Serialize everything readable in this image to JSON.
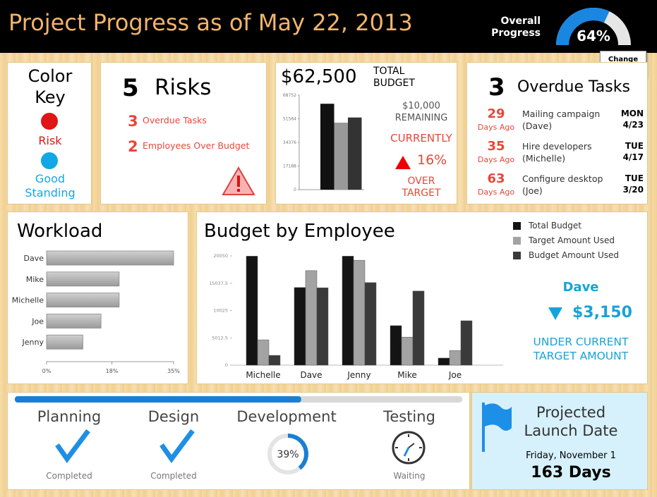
{
  "header": {
    "title": "Project Progress as of May 22, 2013",
    "overall_label": "Overall Progress",
    "gauge": {
      "value": 64,
      "label": "64%"
    },
    "change_data": "Change Data"
  },
  "color_key": {
    "title": "Color Key",
    "items": [
      {
        "label": "Risk",
        "color": "#e01515"
      },
      {
        "label": "Good Standing",
        "color": "#12a7e6"
      }
    ]
  },
  "risks": {
    "count": 5,
    "title": "Risks",
    "items": [
      {
        "count": 3,
        "label": "Overdue Tasks"
      },
      {
        "count": 2,
        "label": "Employees Over Budget"
      }
    ]
  },
  "budget": {
    "amount": "$62,500",
    "label": "TOTAL BUDGET",
    "remaining": "$10,000 REMAINING",
    "currently": "CURRENTLY",
    "percent": "16%",
    "over": "OVER TARGET"
  },
  "overdue": {
    "count": 3,
    "title": "Overdue Tasks",
    "tasks": [
      {
        "days": 29,
        "days_label": "Days Ago",
        "task": "Mailing campaign (Dave)",
        "day": "MON",
        "date": "4/23"
      },
      {
        "days": 35,
        "days_label": "Days Ago",
        "task": "Hire developers (Michelle)",
        "day": "TUE",
        "date": "4/17"
      },
      {
        "days": 63,
        "days_label": "Days Ago",
        "task": "Configure desktop (Joe)",
        "day": "TUE",
        "date": "3/20"
      }
    ]
  },
  "callout": {
    "name": "Dave",
    "amount": "$3,150",
    "text": "UNDER CURRENT TARGET AMOUNT"
  },
  "phases": [
    {
      "name": "Planning",
      "status": "Completed"
    },
    {
      "name": "Design",
      "status": "Completed"
    },
    {
      "name": "Development",
      "progress": {
        "value": 39,
        "label": "39%"
      }
    },
    {
      "name": "Testing",
      "status": "Waiting"
    }
  ],
  "launch": {
    "title": "Projected Launch Date",
    "date": "Friday, November 1",
    "days": "163 Days"
  },
  "chart_data": [
    {
      "type": "bar",
      "values": [
        62500,
        48750,
        52500
      ],
      "colors": [
        "#111111",
        "#999999",
        "#333333"
      ],
      "ylim": [
        0,
        68752
      ],
      "yticks": [
        0,
        17188,
        34376,
        51564,
        68752
      ]
    },
    {
      "type": "hbar",
      "title": "Workload",
      "categories": [
        "Dave",
        "Mike",
        "Michelle",
        "Joe",
        "Jenny"
      ],
      "values": [
        35,
        20,
        20,
        15,
        10
      ],
      "color": "#9a9a9a",
      "xlim": [
        0,
        35
      ],
      "xticks": [
        {
          "value": 0,
          "label": "0%"
        },
        {
          "value": 18,
          "label": "18%"
        },
        {
          "value": 35,
          "label": "35%"
        }
      ]
    },
    {
      "type": "grouped_bar",
      "title": "Budget by Employee",
      "categories": [
        "Michelle",
        "Dave",
        "Jenny",
        "Mike",
        "Joe"
      ],
      "series": [
        {
          "name": "Total Budget",
          "color": "#141414",
          "values": [
            20000,
            14250,
            20000,
            7250,
            1300
          ]
        },
        {
          "name": "Target Amount Used",
          "color": "#a3a3a3",
          "values": [
            4650,
            17350,
            19250,
            5150,
            2700
          ]
        },
        {
          "name": "Budget Amount Used",
          "color": "#3a3a3a",
          "values": [
            1800,
            14200,
            15150,
            13600,
            8150
          ]
        }
      ],
      "ylim": [
        0,
        20050
      ],
      "yticks": [
        0,
        5012.5,
        10025,
        15037.5,
        20050
      ]
    }
  ]
}
